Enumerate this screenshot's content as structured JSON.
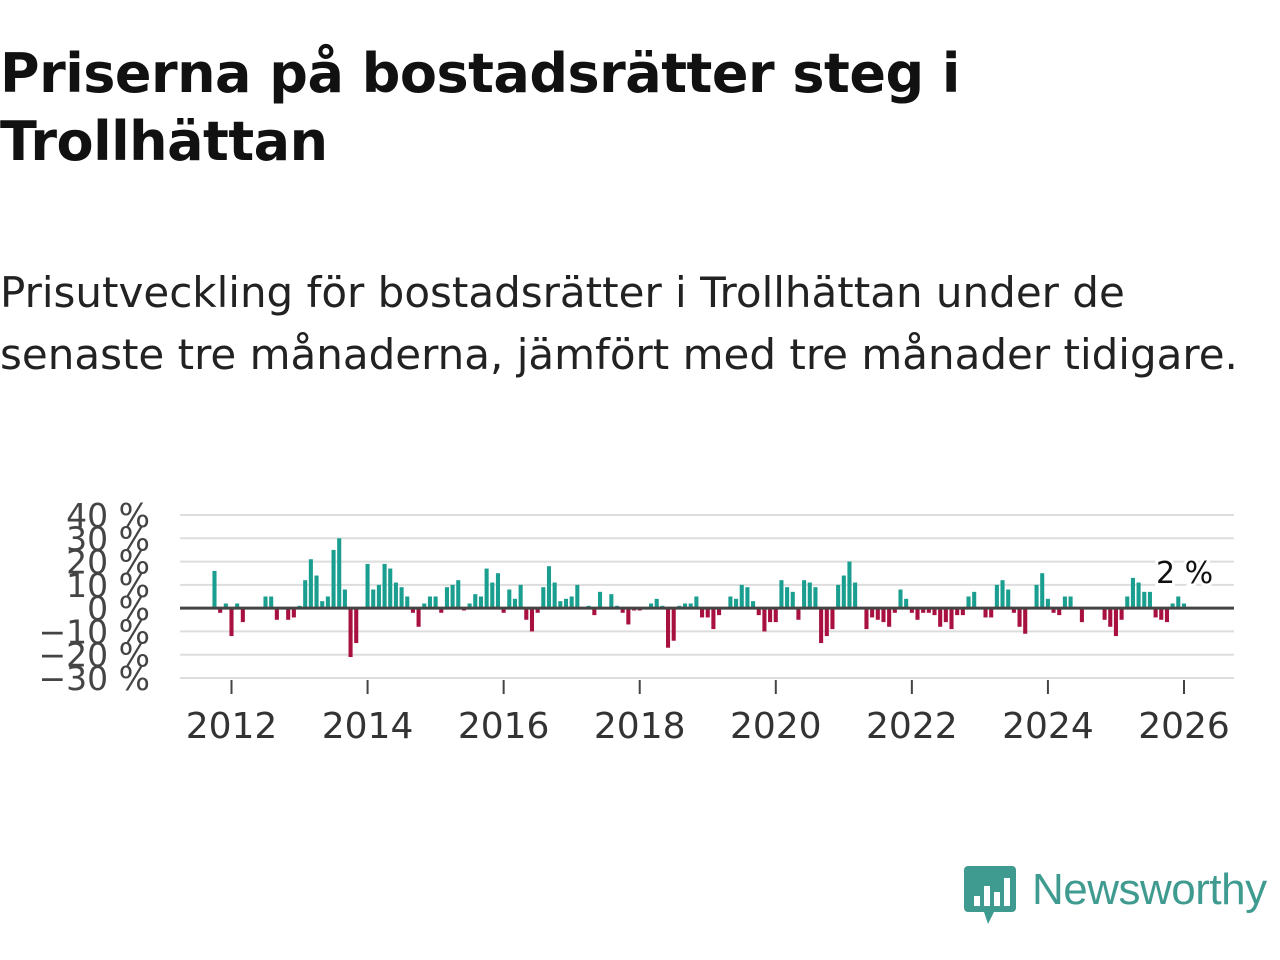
{
  "title": "Priserna på bostadsrätter steg i Trollhättan",
  "subtitle": "Prisutveckling för bostadsrätter i Trollhättan under de senaste tre månaderna, jämfört med tre månader tidigare.",
  "logo": {
    "text": "Newsworthy"
  },
  "colors": {
    "positive": "#1a9e8f",
    "negative": "#a8103f",
    "grid": "#dddddd",
    "zero": "#444444",
    "brand": "#3f9b8f"
  },
  "chart_data": {
    "type": "bar",
    "title": "Priserna på bostadsrätter steg i Trollhättan",
    "xlabel": "",
    "ylabel": "",
    "ylim": [
      -30,
      40
    ],
    "y_ticks": [
      40,
      30,
      20,
      10,
      0,
      -10,
      -20,
      -30
    ],
    "y_tick_labels": [
      "40 %",
      "30 %",
      "20 %",
      "10 %",
      "0 %",
      "−10 %",
      "−20 %",
      "−30 %"
    ],
    "x_ticks": [
      2012,
      2014,
      2016,
      2018,
      2020,
      2022,
      2024,
      2026
    ],
    "x_tick_labels": [
      "2012",
      "2014",
      "2016",
      "2018",
      "2020",
      "2022",
      "2024",
      "2026"
    ],
    "x_start": 2011.75,
    "step": 0.08333,
    "values": [
      16,
      -2,
      2,
      -12,
      2,
      -6,
      0,
      0,
      0,
      5,
      5,
      -5,
      0,
      -5,
      -4,
      1,
      12,
      21,
      14,
      3,
      5,
      25,
      30,
      8,
      -21,
      -15,
      0,
      19,
      8,
      10,
      19,
      17,
      11,
      9,
      5,
      -2,
      -8,
      2,
      5,
      5,
      -2,
      9,
      10,
      12,
      -1,
      2,
      6,
      5,
      17,
      11,
      15,
      -2,
      8,
      4,
      10,
      -5,
      -10,
      -2,
      9,
      18,
      11,
      3,
      4,
      5,
      10,
      0,
      1,
      -3,
      7,
      0,
      6,
      1,
      -2,
      -7,
      -1,
      -1,
      0,
      2,
      4,
      1,
      -17,
      -14,
      1,
      2,
      2,
      5,
      -4,
      -4,
      -9,
      -3,
      0,
      5,
      4,
      10,
      9,
      3,
      -3,
      -10,
      -6,
      -6,
      12,
      9,
      7,
      -5,
      12,
      11,
      9,
      -15,
      -12,
      -9,
      10,
      14,
      20,
      11,
      0,
      -9,
      -4,
      -5,
      -6,
      -8,
      -2,
      8,
      4,
      -2,
      -5,
      -2,
      -2,
      -3,
      -8,
      -6,
      -9,
      -3,
      -3,
      5,
      7,
      0,
      -4,
      -4,
      10,
      12,
      8,
      -2,
      -8,
      -11,
      0,
      10,
      15,
      4,
      -2,
      -3,
      5,
      5,
      0,
      -6,
      0,
      0,
      0,
      -5,
      -8,
      -12,
      -5,
      5,
      13,
      11,
      7,
      7,
      -4,
      -5,
      -6,
      2,
      5,
      2
    ],
    "annotation": "2 %"
  }
}
